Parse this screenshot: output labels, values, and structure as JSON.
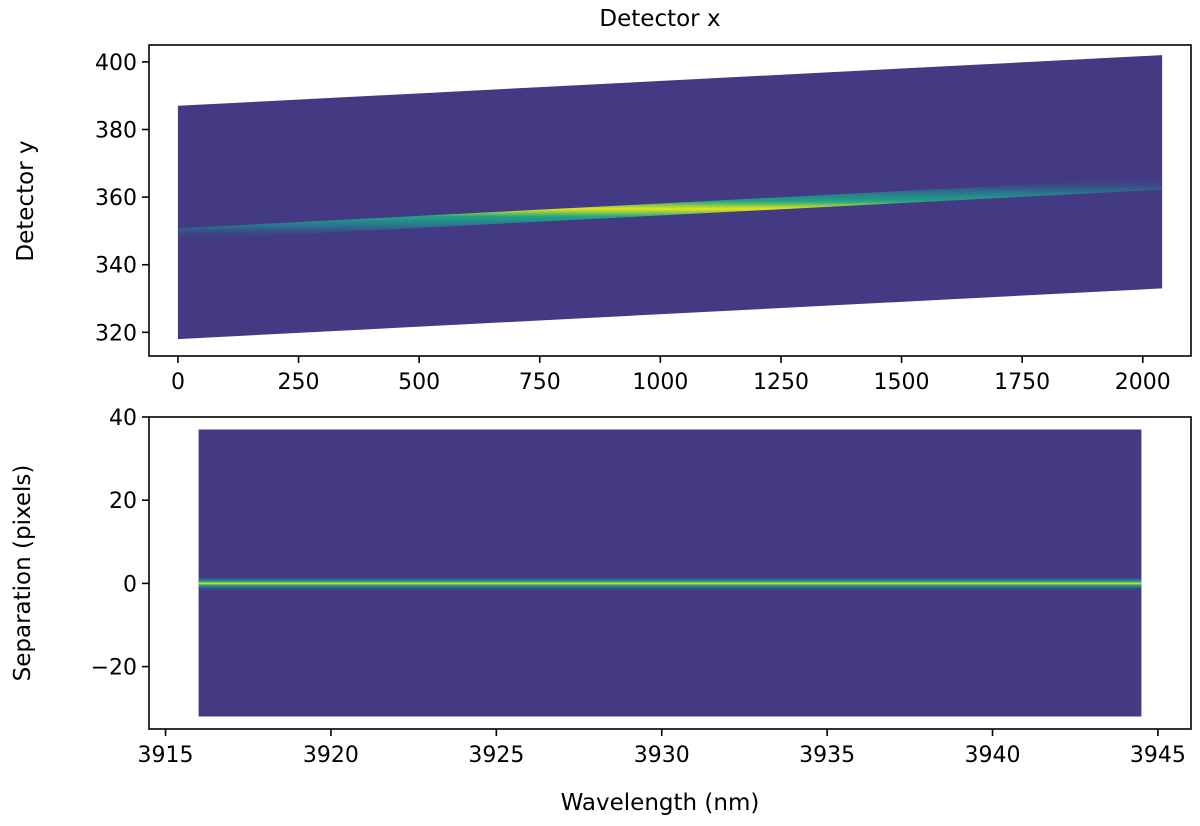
{
  "chart_data": [
    {
      "type": "heatmap",
      "title": "",
      "xlabel": "Detector x",
      "ylabel": "Detector y",
      "xlabel_position": "top",
      "xlim": [
        -60,
        2100
      ],
      "ylim": [
        313,
        405
      ],
      "xticks": [
        0,
        250,
        500,
        750,
        1000,
        1250,
        1500,
        1750,
        2000
      ],
      "xtick_labels": [
        "0",
        "250",
        "500",
        "750",
        "1000",
        "1250",
        "1500",
        "1750",
        "2000"
      ],
      "yticks": [
        320,
        340,
        360,
        380,
        400
      ],
      "ytick_labels": [
        "320",
        "340",
        "360",
        "380",
        "400"
      ],
      "region": {
        "x_start": 0,
        "x_end": 2040,
        "y_bottom_start": 318,
        "y_bottom_end": 333,
        "y_top_start": 387,
        "y_top_end": 402
      },
      "trace": {
        "x": [
          0,
          2040
        ],
        "y": [
          349,
          364
        ]
      },
      "colormap": "viridis",
      "grid": false
    },
    {
      "type": "heatmap",
      "title": "",
      "xlabel": "Wavelength (nm)",
      "ylabel": "Separation (pixels)",
      "xlim": [
        3914.5,
        3946
      ],
      "ylim": [
        -35,
        40
      ],
      "xticks": [
        3915,
        3920,
        3925,
        3930,
        3935,
        3940,
        3945
      ],
      "xtick_labels": [
        "3915",
        "3920",
        "3925",
        "3930",
        "3935",
        "3940",
        "3945"
      ],
      "yticks": [
        -20,
        0,
        20,
        40
      ],
      "ytick_labels": [
        "−20",
        "0",
        "20",
        "40"
      ],
      "region": {
        "x_start": 3916,
        "x_end": 3944.5,
        "y_bottom": -32,
        "y_top": 37
      },
      "trace": {
        "x": [
          3916,
          3944.5
        ],
        "y": [
          0,
          0
        ]
      },
      "colormap": "viridis",
      "grid": false
    }
  ]
}
